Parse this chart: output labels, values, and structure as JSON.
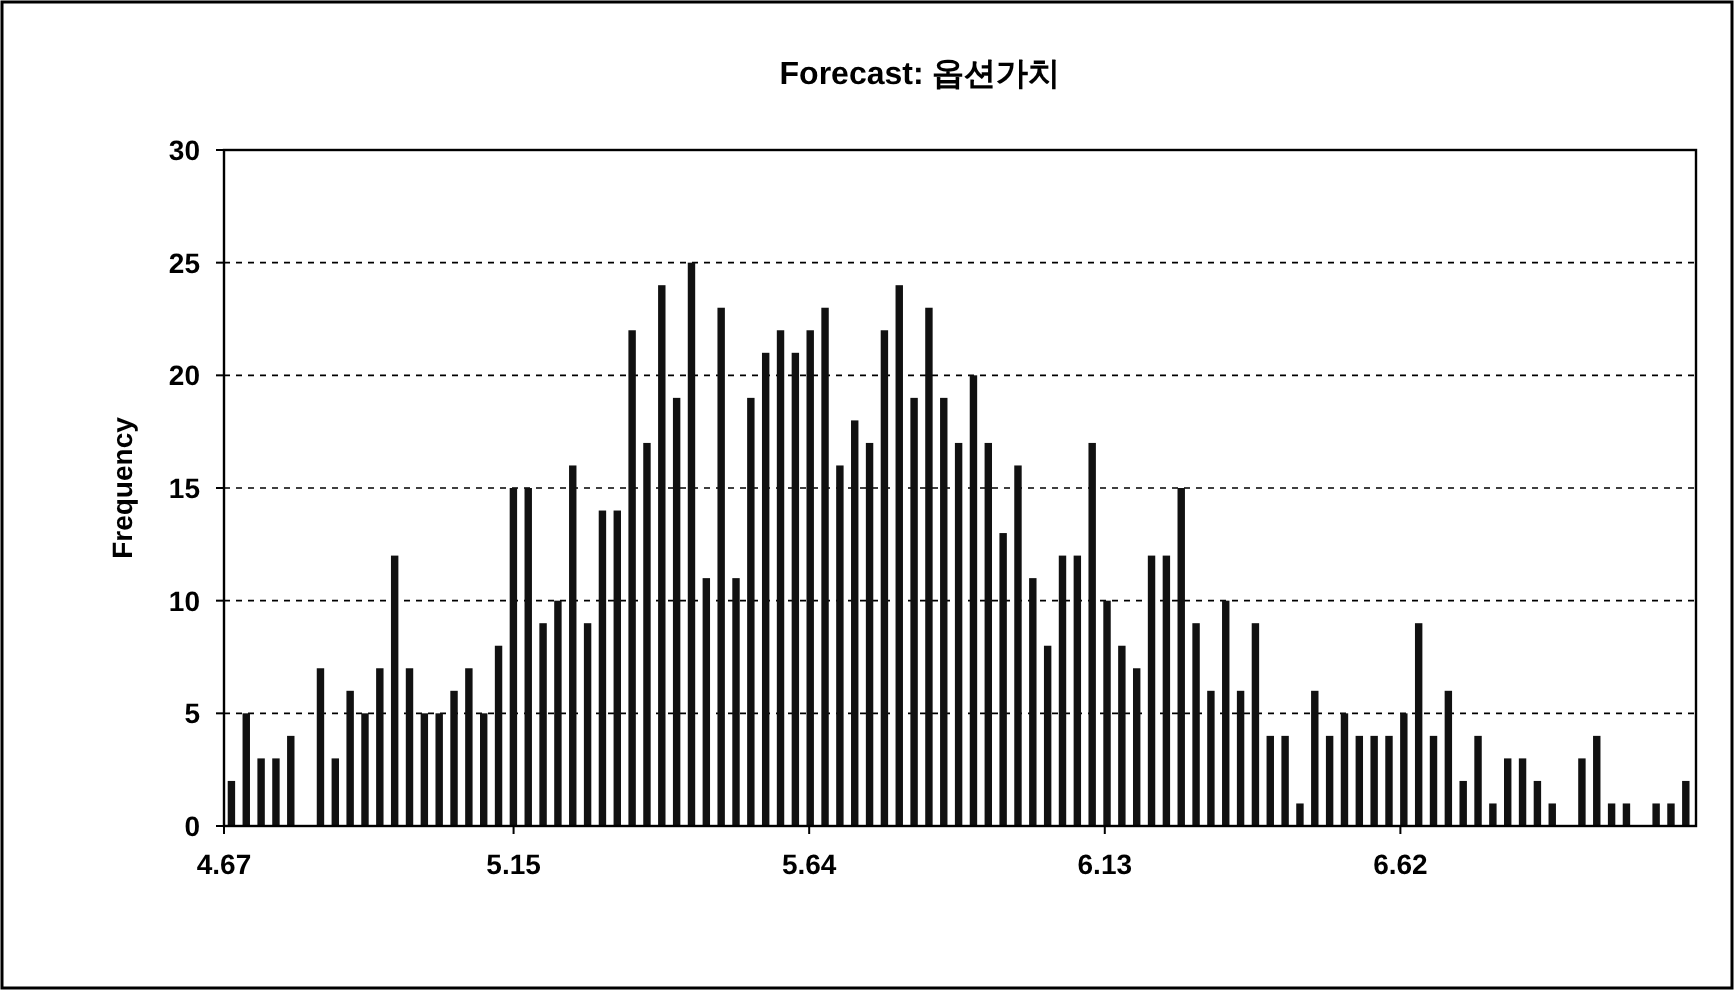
{
  "chart_data": {
    "type": "histogram",
    "title": "Forecast: 옵션가치",
    "ylabel": "Frequency",
    "bins": [
      4.67,
      4.6946,
      4.7192,
      4.7438,
      4.7684,
      4.793,
      4.8176,
      4.8422,
      4.8668,
      4.8914,
      4.916,
      4.9406,
      4.9652,
      4.9898,
      5.0144,
      5.039,
      5.0636,
      5.0882,
      5.1128,
      5.1374,
      5.162,
      5.1866,
      5.2112,
      5.2358,
      5.2604,
      5.285,
      5.3096,
      5.3342,
      5.3588,
      5.3834,
      5.408,
      5.4326,
      5.4572,
      5.4818,
      5.5064,
      5.531,
      5.5556,
      5.5802,
      5.6048,
      5.6294,
      5.654,
      5.6786,
      5.7032,
      5.7278,
      5.7524,
      5.777,
      5.8016,
      5.8262,
      5.8508,
      5.8754,
      5.9,
      5.9246,
      5.9492,
      5.9738,
      5.9984,
      6.023,
      6.0476,
      6.0722,
      6.0968,
      6.1214,
      6.146,
      6.1706,
      6.1952,
      6.2198,
      6.2444,
      6.269,
      6.2936,
      6.3182,
      6.3428,
      6.3674,
      6.392,
      6.4166,
      6.4412,
      6.4658,
      6.4904,
      6.515,
      6.5396,
      6.5642,
      6.5888,
      6.6134,
      6.638,
      6.6626,
      6.6872,
      6.7118,
      6.7364,
      6.761,
      6.7856,
      6.8102,
      6.8348,
      6.8594,
      6.884,
      6.9086,
      6.9332,
      6.9578,
      6.9824,
      7.007,
      7.0316,
      7.0562,
      7.0808,
      7.1054
    ],
    "values": [
      2,
      5,
      3,
      3,
      4,
      0,
      7,
      3,
      6,
      5,
      7,
      12,
      7,
      5,
      5,
      6,
      7,
      5,
      8,
      15,
      15,
      9,
      10,
      16,
      9,
      14,
      14,
      22,
      17,
      24,
      19,
      25,
      11,
      23,
      11,
      19,
      21,
      22,
      21,
      22,
      23,
      16,
      18,
      17,
      22,
      24,
      19,
      23,
      19,
      17,
      20,
      17,
      13,
      16,
      11,
      8,
      12,
      12,
      17,
      10,
      8,
      7,
      12,
      12,
      15,
      9,
      6,
      10,
      6,
      9,
      4,
      4,
      1,
      6,
      4,
      5,
      4,
      4,
      4,
      5,
      9,
      4,
      6,
      2,
      4,
      1,
      3,
      3,
      2,
      1,
      0,
      3,
      4,
      1,
      1,
      0,
      1,
      1,
      2
    ],
    "color": "#111111",
    "xlim": [
      4.67,
      7.11
    ],
    "xticks": [
      4.67,
      5.15,
      5.64,
      6.13,
      6.62
    ],
    "ylim": [
      0,
      30
    ],
    "yticks": [
      0,
      5,
      10,
      15,
      20,
      25,
      30
    ],
    "grid": "y"
  }
}
